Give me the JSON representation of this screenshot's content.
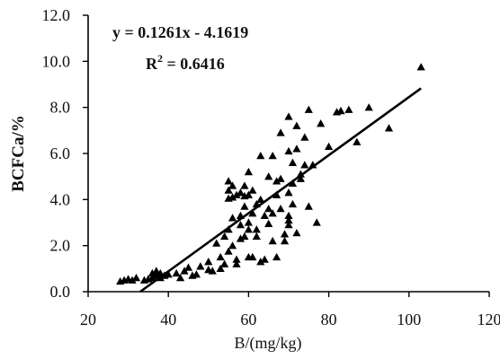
{
  "chart_data": {
    "type": "scatter",
    "xlabel": "B/(mg/kg)",
    "ylabel": "BCFCa/%",
    "xlim": [
      20,
      120
    ],
    "ylim": [
      0,
      12
    ],
    "x_ticks": [
      "20",
      "40",
      "60",
      "80",
      "100",
      "120"
    ],
    "y_ticks": [
      "0.0",
      "2.0",
      "4.0",
      "6.0",
      "8.0",
      "10.0",
      "12.0"
    ],
    "equation": "y = 0.1261x - 4.1619",
    "r2_prefix": "R",
    "r2_exp": "2",
    "r2_value": " = 0.6416",
    "trendline": {
      "slope": 0.1261,
      "intercept": -4.1619,
      "x_start": 33,
      "x_end": 103
    },
    "marker": "triangle",
    "points": [
      [
        28,
        0.45
      ],
      [
        29,
        0.5
      ],
      [
        30,
        0.55
      ],
      [
        31,
        0.5
      ],
      [
        32,
        0.6
      ],
      [
        34,
        0.5
      ],
      [
        35,
        0.55
      ],
      [
        36,
        0.6
      ],
      [
        36,
        0.8
      ],
      [
        37,
        0.7
      ],
      [
        37,
        0.9
      ],
      [
        38,
        0.6
      ],
      [
        38,
        0.8
      ],
      [
        39,
        0.7
      ],
      [
        40,
        0.75
      ],
      [
        42,
        0.8
      ],
      [
        43,
        0.6
      ],
      [
        44,
        0.9
      ],
      [
        45,
        1.05
      ],
      [
        46,
        0.7
      ],
      [
        47,
        0.75
      ],
      [
        48,
        1.1
      ],
      [
        50,
        1.3
      ],
      [
        50,
        0.95
      ],
      [
        51,
        0.9
      ],
      [
        52,
        2.1
      ],
      [
        53,
        1.5
      ],
      [
        53,
        1.0
      ],
      [
        54,
        2.4
      ],
      [
        54,
        1.2
      ],
      [
        55,
        1.75
      ],
      [
        55,
        2.7
      ],
      [
        55,
        4.8
      ],
      [
        55,
        4.4
      ],
      [
        55,
        4.05
      ],
      [
        56,
        4.6
      ],
      [
        56,
        4.1
      ],
      [
        56,
        3.2
      ],
      [
        56,
        2.0
      ],
      [
        57,
        1.2
      ],
      [
        57,
        1.4
      ],
      [
        57,
        4.2
      ],
      [
        58,
        4.3
      ],
      [
        58,
        3.3
      ],
      [
        58,
        2.9
      ],
      [
        58,
        2.3
      ],
      [
        59,
        4.6
      ],
      [
        59,
        3.7
      ],
      [
        59,
        2.4
      ],
      [
        59,
        4.15
      ],
      [
        60,
        5.2
      ],
      [
        60,
        4.2
      ],
      [
        60,
        3.0
      ],
      [
        60,
        2.7
      ],
      [
        60,
        1.5
      ],
      [
        61,
        4.4
      ],
      [
        61,
        3.4
      ],
      [
        61,
        1.5
      ],
      [
        62,
        3.8
      ],
      [
        62,
        2.7
      ],
      [
        62,
        2.4
      ],
      [
        63,
        5.9
      ],
      [
        63,
        4.0
      ],
      [
        63,
        1.3
      ],
      [
        64,
        3.3
      ],
      [
        64,
        1.4
      ],
      [
        65,
        5.0
      ],
      [
        65,
        2.95
      ],
      [
        65,
        3.6
      ],
      [
        66,
        5.9
      ],
      [
        66,
        3.4
      ],
      [
        66,
        2.2
      ],
      [
        67,
        4.8
      ],
      [
        67,
        4.2
      ],
      [
        67,
        1.5
      ],
      [
        68,
        6.9
      ],
      [
        68,
        4.9
      ],
      [
        68,
        3.6
      ],
      [
        69,
        2.2
      ],
      [
        69,
        2.5
      ],
      [
        70,
        7.6
      ],
      [
        70,
        6.1
      ],
      [
        70,
        4.3
      ],
      [
        70,
        3.3
      ],
      [
        70,
        3.1
      ],
      [
        70,
        2.9
      ],
      [
        71,
        5.6
      ],
      [
        71,
        4.7
      ],
      [
        71,
        3.8
      ],
      [
        72,
        7.2
      ],
      [
        72,
        6.2
      ],
      [
        72,
        2.55
      ],
      [
        73,
        5.1
      ],
      [
        73,
        4.9
      ],
      [
        74,
        6.7
      ],
      [
        74,
        5.5
      ],
      [
        75,
        7.9
      ],
      [
        75,
        3.7
      ],
      [
        76,
        5.5
      ],
      [
        77,
        3.0
      ],
      [
        78,
        7.3
      ],
      [
        80,
        6.3
      ],
      [
        82,
        7.8
      ],
      [
        83,
        7.85
      ],
      [
        85,
        7.9
      ],
      [
        87,
        6.5
      ],
      [
        90,
        8.0
      ],
      [
        95,
        7.1
      ],
      [
        103,
        9.75
      ]
    ]
  }
}
